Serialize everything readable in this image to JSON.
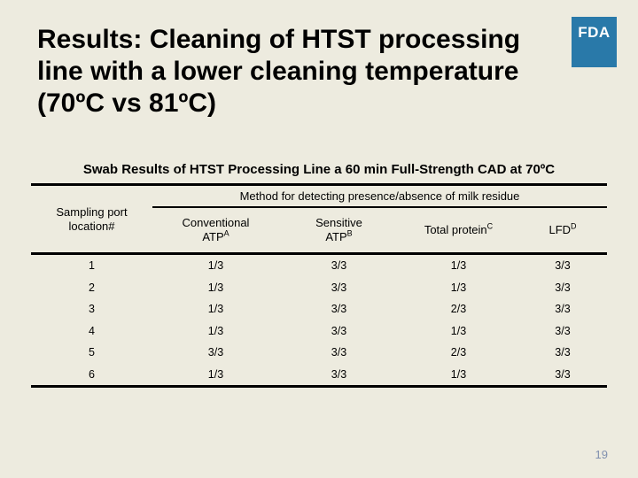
{
  "slide": {
    "background_color": "#EDEBDF",
    "page_number": "19"
  },
  "header": {
    "title": "Results: Cleaning of HTST processing\nline with a lower cleaning temperature\n(70ºC vs 81ºC)",
    "fda_logo_text": "FDA",
    "fda_logo_color": "#2979A9"
  },
  "table": {
    "title": "Swab Results of HTST Processing Line a 60 min Full-Strength CAD at 70ºC",
    "group_header": "Method for detecting presence/absence of milk residue",
    "columns": [
      {
        "label": "Sampling port\nlocation#",
        "sup": ""
      },
      {
        "label": "Conventional\nATP",
        "sup": "A"
      },
      {
        "label": "Sensitive\nATP",
        "sup": "B"
      },
      {
        "label": "Total protein",
        "sup": "C"
      },
      {
        "label": "LFD",
        "sup": "D"
      }
    ],
    "rows": [
      [
        "1",
        "1/3",
        "3/3",
        "1/3",
        "3/3"
      ],
      [
        "2",
        "1/3",
        "3/3",
        "1/3",
        "3/3"
      ],
      [
        "3",
        "1/3",
        "3/3",
        "2/3",
        "3/3"
      ],
      [
        "4",
        "1/3",
        "3/3",
        "1/3",
        "3/3"
      ],
      [
        "5",
        "3/3",
        "3/3",
        "2/3",
        "3/3"
      ],
      [
        "6",
        "1/3",
        "3/3",
        "1/3",
        "3/3"
      ]
    ]
  }
}
